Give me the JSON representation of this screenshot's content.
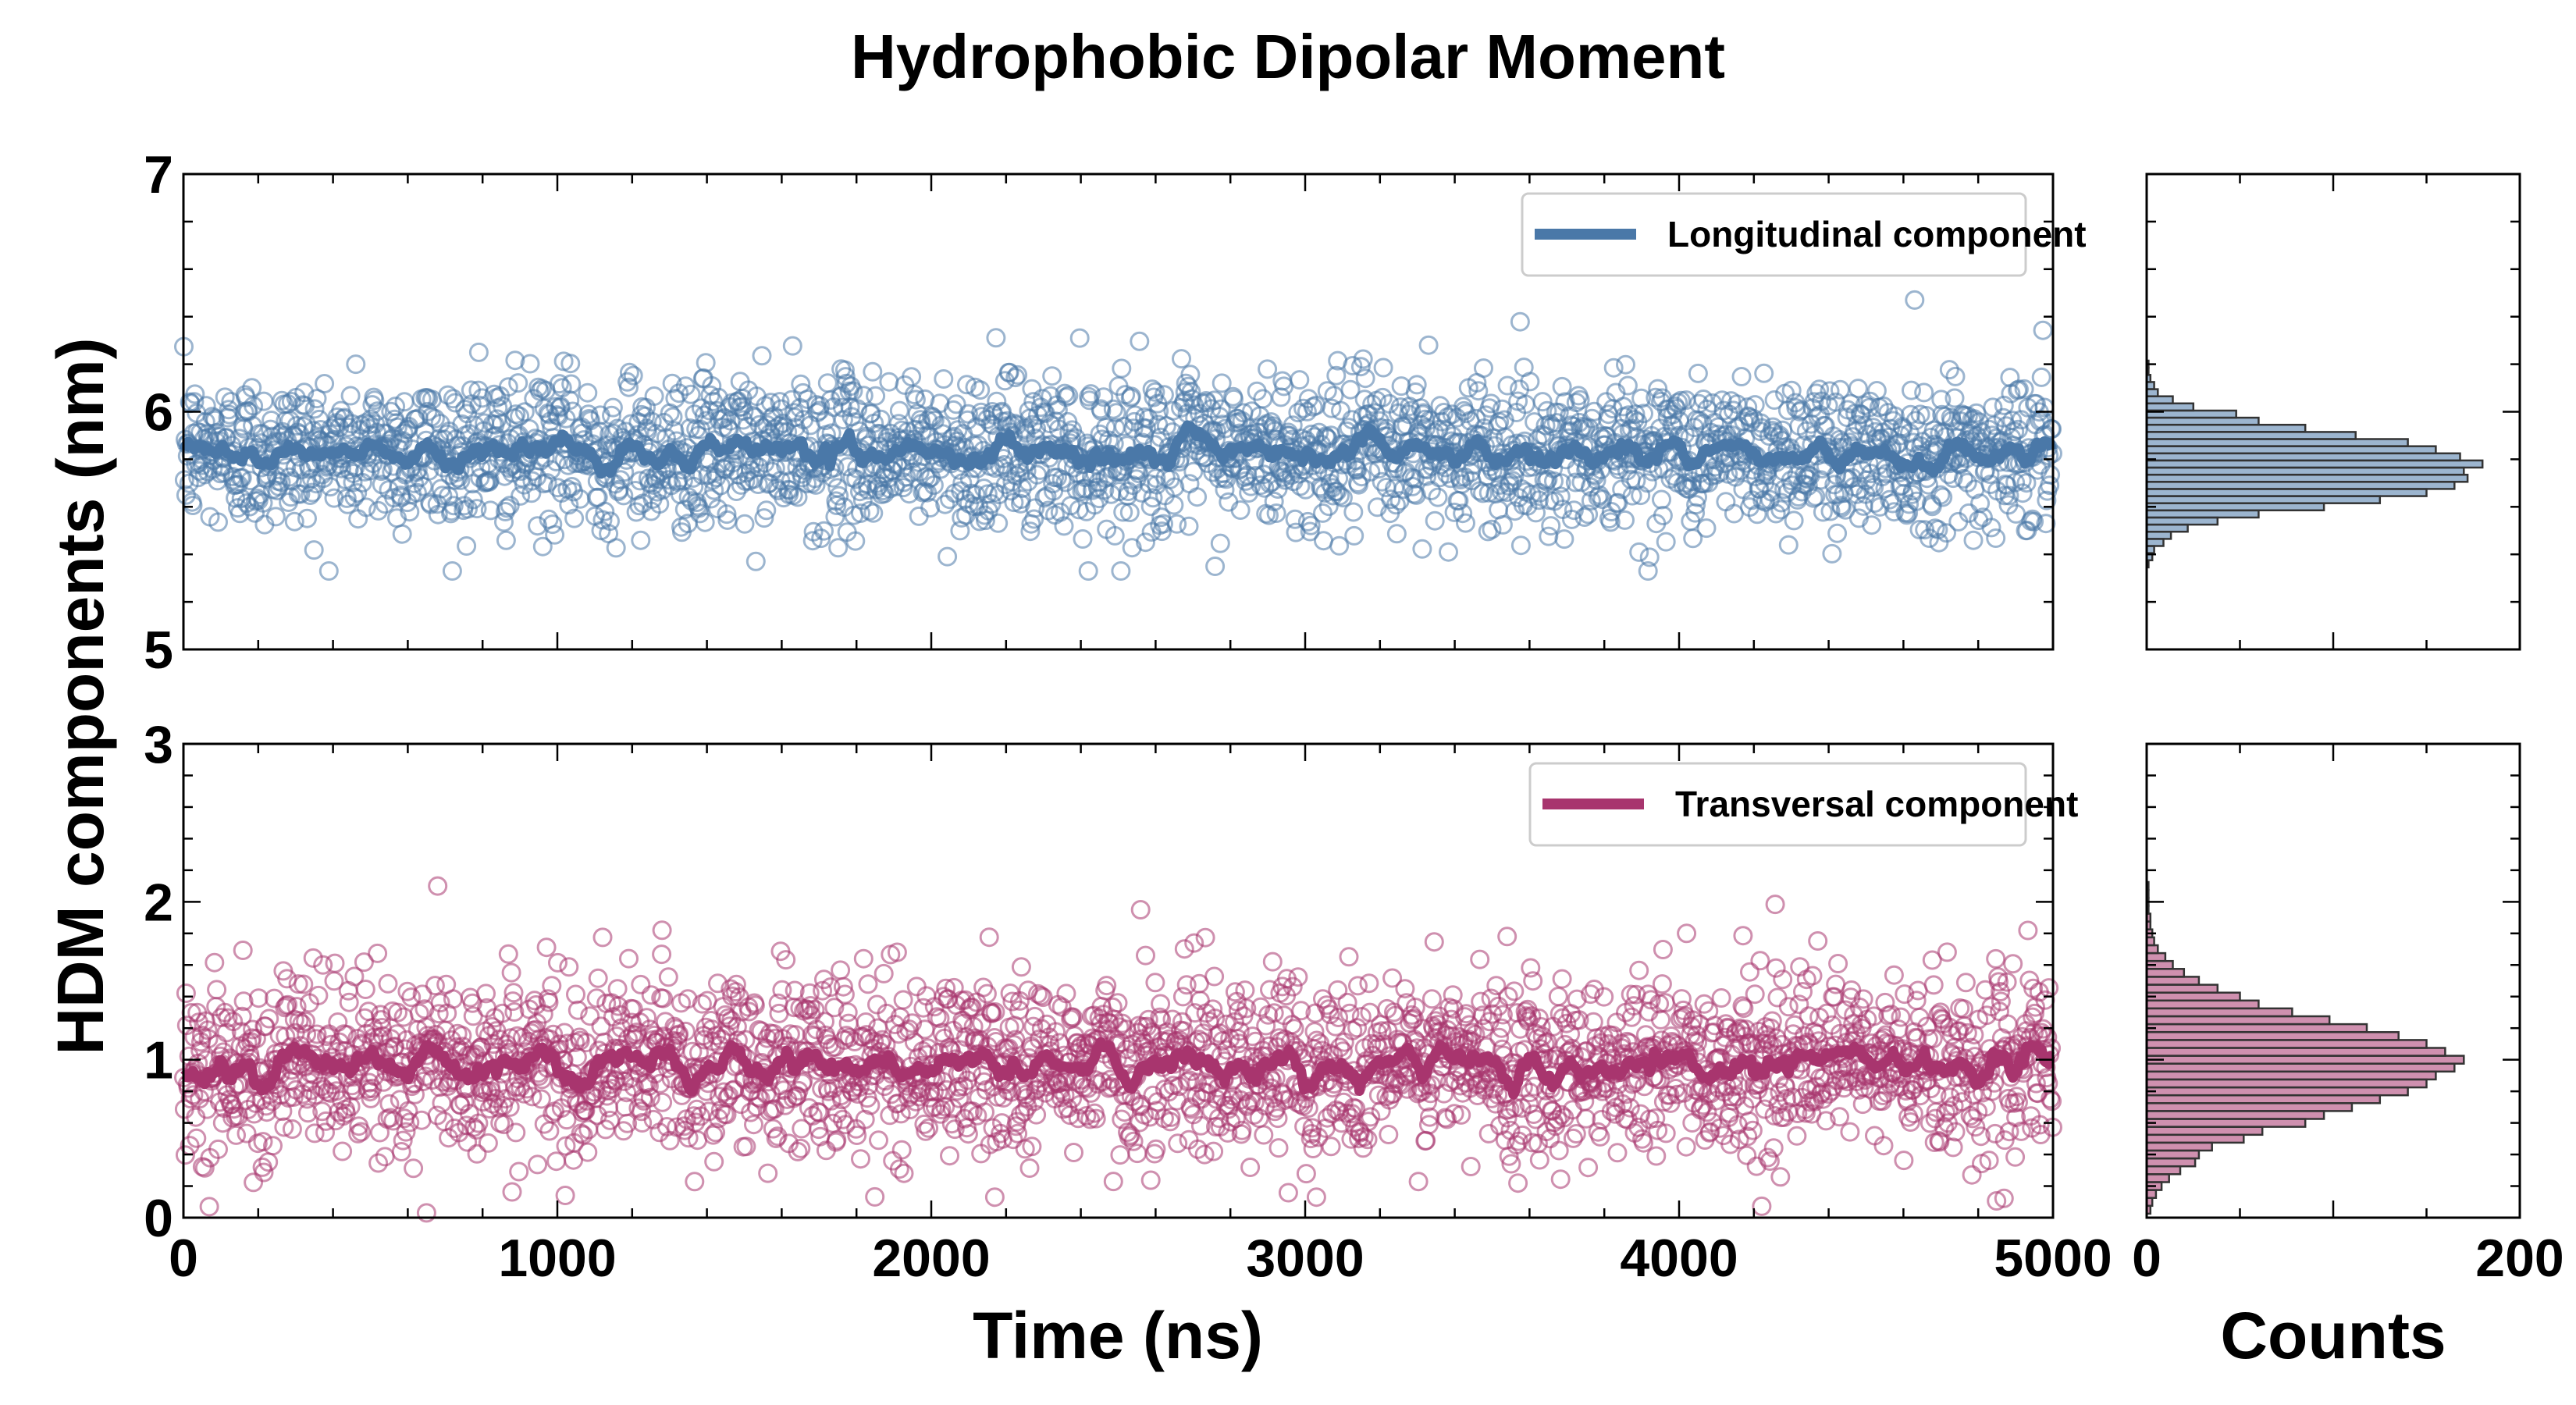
{
  "chart_data": {
    "title": "Hydrophobic Dipolar Moment",
    "type": "scatter",
    "shared_xlabel": "Time (ns)",
    "shared_ylabel": "HDM components (nm)",
    "hist_xlabel": "Counts",
    "xlim": [
      0,
      5000
    ],
    "x_ticks": [
      "0",
      "1000",
      "2000",
      "3000",
      "4000",
      "5000"
    ],
    "hist_xlim": [
      0,
      200
    ],
    "hist_ticks": [
      "0",
      "200"
    ],
    "panels": [
      {
        "name": "Longitudinal component",
        "legend": "Longitudinal component",
        "color": "#4a78a8",
        "ylim": [
          5,
          7
        ],
        "y_ticks": [
          "5",
          "6",
          "7"
        ],
        "n_points": 2500,
        "mean": 5.83,
        "scatter_sd": 0.16,
        "range_observed": [
          5.33,
          6.47
        ],
        "outliers": [
          [
            2420,
            5.33
          ],
          [
            4630,
            6.47
          ],
          [
            3330,
            6.28
          ],
          [
            790,
            6.25
          ]
        ],
        "histogram": {
          "bin_centers": [
            5.36,
            5.39,
            5.42,
            5.45,
            5.48,
            5.51,
            5.54,
            5.57,
            5.6,
            5.63,
            5.66,
            5.69,
            5.72,
            5.75,
            5.78,
            5.81,
            5.84,
            5.87,
            5.9,
            5.93,
            5.96,
            5.99,
            6.02,
            6.05,
            6.08,
            6.11,
            6.14,
            6.17,
            6.2,
            6.23,
            6.26
          ],
          "counts": [
            1,
            3,
            4,
            9,
            13,
            22,
            38,
            60,
            95,
            125,
            150,
            165,
            172,
            170,
            180,
            168,
            155,
            140,
            112,
            85,
            60,
            48,
            25,
            14,
            6,
            4,
            2,
            1,
            1,
            0,
            0
          ]
        }
      },
      {
        "name": "Transversal component",
        "legend": "Transversal component",
        "color": "#a8356e",
        "ylim": [
          0,
          3
        ],
        "y_ticks": [
          "0",
          "1",
          "2",
          "3"
        ],
        "n_points": 2500,
        "mean": 0.97,
        "scatter_sd": 0.28,
        "range_observed": [
          0.0,
          2.1
        ],
        "outliers": [
          [
            680,
            2.1
          ],
          [
            2560,
            1.95
          ],
          [
            1280,
            1.82
          ],
          [
            3540,
            1.78
          ],
          [
            4020,
            1.8
          ],
          [
            650,
            0.03
          ],
          [
            2170,
            0.13
          ],
          [
            3030,
            0.13
          ]
        ],
        "histogram": {
          "bin_centers": [
            0.05,
            0.1,
            0.15,
            0.2,
            0.25,
            0.3,
            0.35,
            0.4,
            0.45,
            0.5,
            0.55,
            0.6,
            0.65,
            0.7,
            0.75,
            0.8,
            0.85,
            0.9,
            0.95,
            1.0,
            1.05,
            1.1,
            1.15,
            1.2,
            1.25,
            1.3,
            1.35,
            1.4,
            1.45,
            1.5,
            1.55,
            1.6,
            1.65,
            1.7,
            1.75,
            1.8,
            1.85,
            1.9,
            1.95,
            2.0,
            2.05,
            2.1
          ],
          "counts": [
            2,
            3,
            5,
            8,
            12,
            18,
            26,
            28,
            35,
            52,
            62,
            85,
            95,
            110,
            125,
            140,
            150,
            155,
            165,
            170,
            160,
            150,
            135,
            118,
            98,
            78,
            60,
            50,
            38,
            28,
            20,
            14,
            10,
            6,
            4,
            3,
            2,
            2,
            1,
            1,
            1,
            1
          ]
        }
      }
    ]
  }
}
